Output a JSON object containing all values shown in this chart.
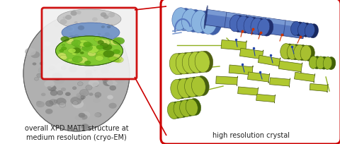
{
  "background_color": "#ffffff",
  "figure_width": 4.8,
  "figure_height": 2.05,
  "dpi": 100,
  "left_label_line1": "overall XPD MAT1 structure at",
  "left_label_line2": "medium resolution (cryo-EM)",
  "right_label": "high resolution crystal",
  "red_color": "#cc0000",
  "label_fontsize": 7.0,
  "label_color": "#222222",
  "blue_helix_color": "#6b8fc4",
  "blue_helix_dark": "#2a4a80",
  "blue_helix_light": "#a8c0e8",
  "green_ribbon_color": "#a8c83a",
  "green_ribbon_dark": "#506010",
  "green_ribbon_light": "#d0e870",
  "gray_main": "#a8a8a8",
  "gray_light": "#d8d8d8",
  "gray_dark": "#686868",
  "green_blob": "#7ab830",
  "blue_blob": "#6888c0"
}
